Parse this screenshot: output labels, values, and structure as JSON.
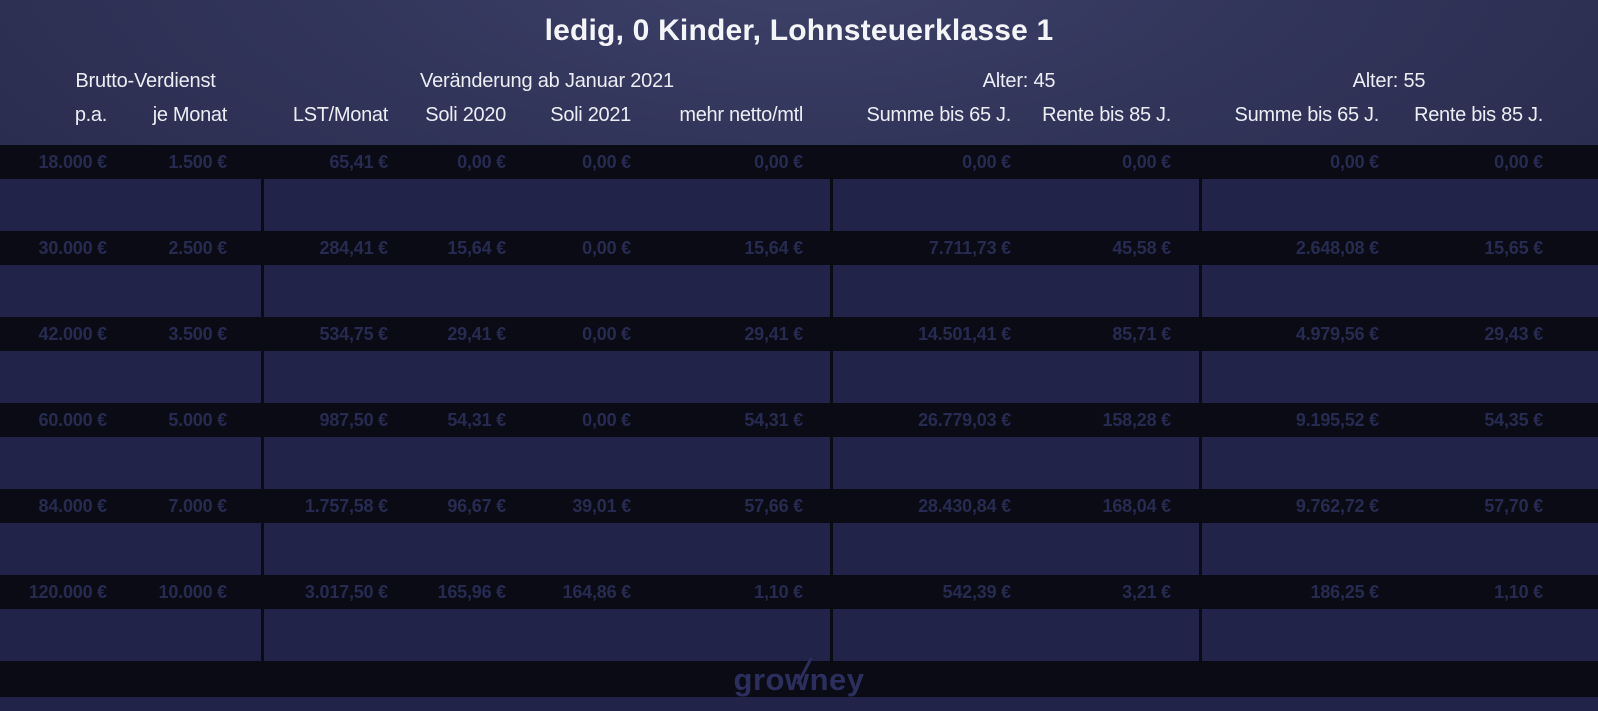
{
  "title": "ledig, 0 Kinder, Lohnsteuerklasse 1",
  "chart_data": {
    "type": "table",
    "groups": [
      {
        "label": "Brutto-Verdienst",
        "span": "1 / 3"
      },
      {
        "label": "Veränderung ab Januar 2021",
        "span": "3 / 7"
      },
      {
        "label": "Alter: 45",
        "span": "7 / 9"
      },
      {
        "label": "Alter: 55",
        "span": "9 / 11"
      }
    ],
    "columns": [
      "p.a.",
      "je Monat",
      "LST/Monat",
      "Soli 2020",
      "Soli 2021",
      "mehr netto/mtl",
      "Summe bis 65 J.",
      "Rente bis 85 J.",
      "Summe bis 65 J.",
      "Rente bis 85 J."
    ],
    "rows": [
      [
        "18.000 €",
        "1.500 €",
        "65,41 €",
        "0,00 €",
        "0,00 €",
        "0,00 €",
        "0,00 €",
        "0,00 €",
        "0,00 €",
        "0,00 €"
      ],
      [
        "30.000 €",
        "2.500 €",
        "284,41 €",
        "15,64 €",
        "0,00 €",
        "15,64 €",
        "7.711,73 €",
        "45,58 €",
        "2.648,08 €",
        "15,65 €"
      ],
      [
        "42.000 €",
        "3.500 €",
        "534,75 €",
        "29,41 €",
        "0,00 €",
        "29,41 €",
        "14.501,41 €",
        "85,71 €",
        "4.979,56 €",
        "29,43 €"
      ],
      [
        "60.000 €",
        "5.000 €",
        "987,50 €",
        "54,31 €",
        "0,00 €",
        "54,31 €",
        "26.779,03 €",
        "158,28 €",
        "9.195,52 €",
        "54,35 €"
      ],
      [
        "84.000 €",
        "7.000 €",
        "1.757,58 €",
        "96,67 €",
        "39,01 €",
        "57,66 €",
        "28.430,84 €",
        "168,04 €",
        "9.762,72 €",
        "57,70 €"
      ],
      [
        "120.000 €",
        "10.000 €",
        "3.017,50 €",
        "165,96 €",
        "164,86 €",
        "1,10 €",
        "542,39 €",
        "3,21 €",
        "186,25 €",
        "1,10 €"
      ]
    ],
    "layout": {
      "grid": "off",
      "legend": "none",
      "row_style": "dark rows alternating with navy separator bands"
    }
  },
  "footer": {
    "logo": "growney"
  },
  "colors": {
    "header_bg": "#32355a",
    "row_bg": "#0a0b15",
    "separator_bg": "#212348",
    "header_text": "#eceef4",
    "value_text": "#272b51",
    "logo_text": "#2c2f5e"
  }
}
